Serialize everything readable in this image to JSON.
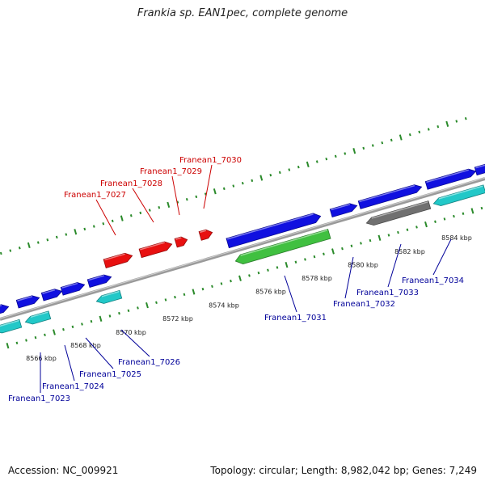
{
  "title": "Frankia sp. EAN1pec, complete genome",
  "footer": {
    "accession": "Accession: NC_009921",
    "topology": "Topology: circular; Length: 8,982,042 bp; Genes: 7,249"
  },
  "colors": {
    "forward_gene": "#1010e0",
    "reverse_gene": "#e81010",
    "rrna_like": "#22c8c8",
    "highlight": "#40c040",
    "other": "#707070",
    "tick": "#2a8a2a",
    "axis": "#9a9a9a",
    "label_red": "#cc0000",
    "label_blue": "#000099"
  },
  "scale_labels": [
    "8566 kbp",
    "8568 kbp",
    "8570 kbp",
    "8572 kbp",
    "8574 kbp",
    "8576 kbp",
    "8578 kbp",
    "8580 kbp",
    "8582 kbp",
    "8584 kbp"
  ],
  "genes_top": [
    {
      "id": "Franean1_7027"
    },
    {
      "id": "Franean1_7028"
    },
    {
      "id": "Franean1_7029"
    },
    {
      "id": "Franean1_7030"
    }
  ],
  "genes_bottom": [
    {
      "id": "Franean1_7023"
    },
    {
      "id": "Franean1_7024"
    },
    {
      "id": "Franean1_7025"
    },
    {
      "id": "Franean1_7026"
    },
    {
      "id": "Franean1_7031"
    },
    {
      "id": "Franean1_7032"
    },
    {
      "id": "Franean1_7033"
    },
    {
      "id": "Franean1_7034"
    }
  ]
}
